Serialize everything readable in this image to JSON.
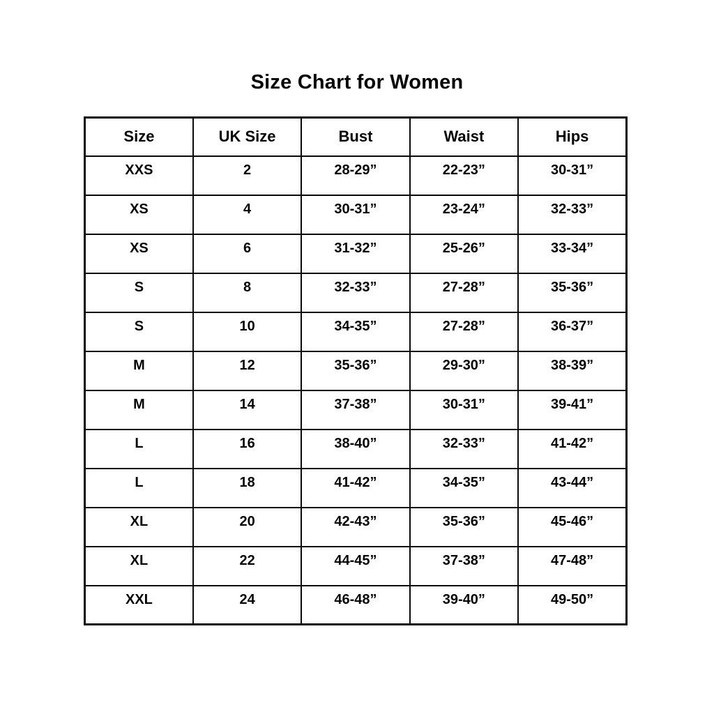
{
  "page_title": "Size Chart for Women",
  "chart_data": {
    "type": "table",
    "title": "Size Chart for Women",
    "columns": [
      "Size",
      "UK Size",
      "Bust",
      "Waist",
      "Hips"
    ],
    "rows": [
      [
        "XXS",
        "2",
        "28-29”",
        "22-23”",
        "30-31”"
      ],
      [
        "XS",
        "4",
        "30-31”",
        "23-24”",
        "32-33”"
      ],
      [
        "XS",
        "6",
        "31-32”",
        "25-26”",
        "33-34”"
      ],
      [
        "S",
        "8",
        "32-33”",
        "27-28”",
        "35-36”"
      ],
      [
        "S",
        "10",
        "34-35”",
        "27-28”",
        "36-37”"
      ],
      [
        "M",
        "12",
        "35-36”",
        "29-30”",
        "38-39”"
      ],
      [
        "M",
        "14",
        "37-38”",
        "30-31”",
        "39-41”"
      ],
      [
        "L",
        "16",
        "38-40”",
        "32-33”",
        "41-42”"
      ],
      [
        "L",
        "18",
        "41-42”",
        "34-35”",
        "43-44”"
      ],
      [
        "XL",
        "20",
        "42-43”",
        "35-36”",
        "45-46”"
      ],
      [
        "XL",
        "22",
        "44-45”",
        "37-38”",
        "47-48”"
      ],
      [
        "XXL",
        "24",
        "46-48”",
        "39-40”",
        "49-50”"
      ]
    ]
  }
}
